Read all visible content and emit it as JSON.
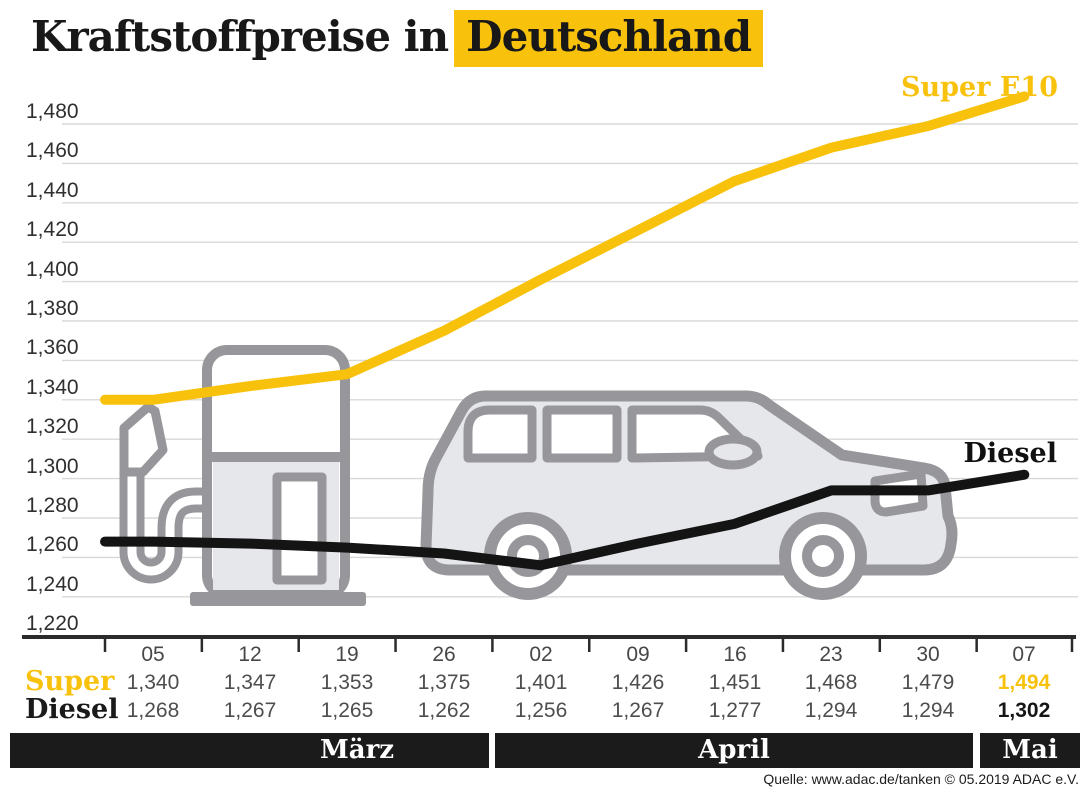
{
  "title": {
    "prefix": "Kraftstoffpreise in",
    "highlight": "Deutschland"
  },
  "source": "Quelle: www.adac.de/tanken  © 05.2019  ADAC e.V.",
  "colors": {
    "accent_yellow": "#F8C20C",
    "line_black": "#141414",
    "graphic_gray": "#97979B",
    "graphic_fill": "#E5E7EA",
    "grid": "#D8D8D8",
    "axis": "#2B2B2B",
    "month_bar_bg": "#1B1B1B",
    "month_text": "#FFFFFF"
  },
  "chart_data": {
    "type": "line",
    "title": "Kraftstoffpreise in Deutschland",
    "x": [
      "05",
      "12",
      "19",
      "26",
      "02",
      "09",
      "16",
      "23",
      "30",
      "07"
    ],
    "series": [
      {
        "name": "Super E10",
        "color": "#F8C20C",
        "values": [
          1.34,
          1.347,
          1.353,
          1.375,
          1.401,
          1.426,
          1.451,
          1.468,
          1.479,
          1.494
        ]
      },
      {
        "name": "Diesel",
        "color": "#141414",
        "values": [
          1.268,
          1.267,
          1.265,
          1.262,
          1.256,
          1.267,
          1.277,
          1.294,
          1.294,
          1.302
        ]
      }
    ],
    "y_ticks": [
      "1,480",
      "1,460",
      "1,440",
      "1,420",
      "1,400",
      "1,380",
      "1,360",
      "1,340",
      "1,320",
      "1,300",
      "1,280",
      "1,260",
      "1,240",
      "1,220"
    ],
    "y_max": 1.48,
    "y_min": 1.22,
    "y_step": 0.02,
    "grid": true,
    "legend_position": "on-chart",
    "months": [
      {
        "label": "März",
        "start_col": 0,
        "end_col": 3
      },
      {
        "label": "April",
        "start_col": 4,
        "end_col": 8
      },
      {
        "label": "Mai",
        "start_col": 9,
        "end_col": 9
      }
    ]
  },
  "table": {
    "row_labels": [
      "Super",
      "Diesel"
    ],
    "super_values": [
      "1,340",
      "1,347",
      "1,353",
      "1,375",
      "1,401",
      "1,426",
      "1,451",
      "1,468",
      "1,479",
      "1,494"
    ],
    "diesel_values": [
      "1,268",
      "1,267",
      "1,265",
      "1,262",
      "1,256",
      "1,267",
      "1,277",
      "1,294",
      "1,294",
      "1,302"
    ]
  }
}
